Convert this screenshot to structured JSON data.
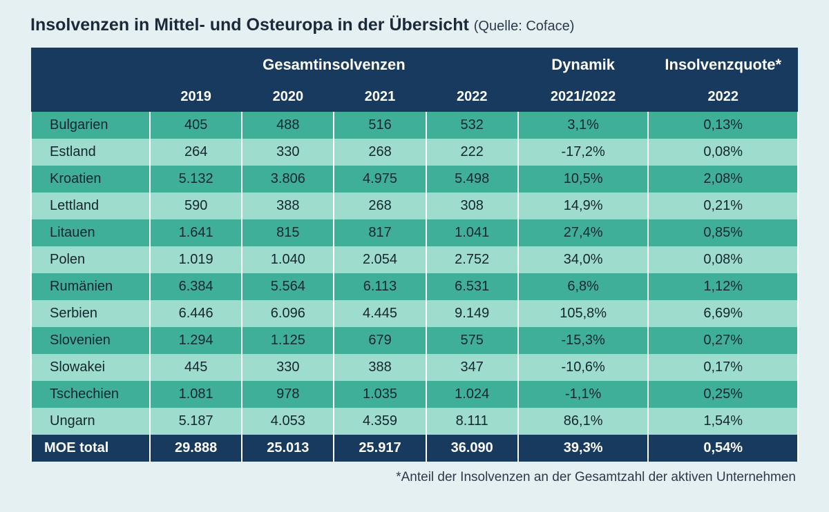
{
  "title_main": "Insolvenzen in Mittel- und Osteuropa in der Übersicht",
  "title_source": "(Quelle: Coface)",
  "header": {
    "group_totals": "Gesamtinsolvenzen",
    "group_dynamics": "Dynamik",
    "group_quote": "Insolvenzquote*",
    "y2019": "2019",
    "y2020": "2020",
    "y2021": "2021",
    "y2022": "2022",
    "dyn_period": "2021/2022",
    "quote_year": "2022"
  },
  "rows": [
    {
      "country": "Bulgarien",
      "v2019": "405",
      "v2020": "488",
      "v2021": "516",
      "v2022": "532",
      "dyn": "3,1%",
      "quote": "0,13%"
    },
    {
      "country": "Estland",
      "v2019": "264",
      "v2020": "330",
      "v2021": "268",
      "v2022": "222",
      "dyn": "-17,2%",
      "quote": "0,08%"
    },
    {
      "country": "Kroatien",
      "v2019": "5.132",
      "v2020": "3.806",
      "v2021": "4.975",
      "v2022": "5.498",
      "dyn": "10,5%",
      "quote": "2,08%"
    },
    {
      "country": "Lettland",
      "v2019": "590",
      "v2020": "388",
      "v2021": "268",
      "v2022": "308",
      "dyn": "14,9%",
      "quote": "0,21%"
    },
    {
      "country": "Litauen",
      "v2019": "1.641",
      "v2020": "815",
      "v2021": "817",
      "v2022": "1.041",
      "dyn": "27,4%",
      "quote": "0,85%"
    },
    {
      "country": "Polen",
      "v2019": "1.019",
      "v2020": "1.040",
      "v2021": "2.054",
      "v2022": "2.752",
      "dyn": "34,0%",
      "quote": "0,08%"
    },
    {
      "country": "Rumänien",
      "v2019": "6.384",
      "v2020": "5.564",
      "v2021": "6.113",
      "v2022": "6.531",
      "dyn": "6,8%",
      "quote": "1,12%"
    },
    {
      "country": "Serbien",
      "v2019": "6.446",
      "v2020": "6.096",
      "v2021": "4.445",
      "v2022": "9.149",
      "dyn": "105,8%",
      "quote": "6,69%"
    },
    {
      "country": "Slovenien",
      "v2019": "1.294",
      "v2020": "1.125",
      "v2021": "679",
      "v2022": "575",
      "dyn": "-15,3%",
      "quote": "0,27%"
    },
    {
      "country": "Slowakei",
      "v2019": "445",
      "v2020": "330",
      "v2021": "388",
      "v2022": "347",
      "dyn": "-10,6%",
      "quote": "0,17%"
    },
    {
      "country": "Tschechien",
      "v2019": "1.081",
      "v2020": "978",
      "v2021": "1.035",
      "v2022": "1.024",
      "dyn": "-1,1%",
      "quote": "0,25%"
    },
    {
      "country": "Ungarn",
      "v2019": "5.187",
      "v2020": "4.053",
      "v2021": "4.359",
      "v2022": "8.111",
      "dyn": "86,1%",
      "quote": "1,54%"
    }
  ],
  "total": {
    "country": "MOE total",
    "v2019": "29.888",
    "v2020": "25.013",
    "v2021": "25.917",
    "v2022": "36.090",
    "dyn": "39,3%",
    "quote": "0,54%"
  },
  "footnote": "*Anteil der Insolvenzen an der Gesamtzahl der aktiven Unternehmen",
  "style": {
    "type": "table",
    "page_bg": "#e5f0f2",
    "header_bg": "#173a5e",
    "header_fg": "#ffffff",
    "row_dark_bg": "#3fb097",
    "row_light_bg": "#9edccd",
    "row_fg": "#12262e",
    "total_bg": "#173a5e",
    "total_fg": "#ffffff",
    "cell_border": "#ffffff",
    "title_fontsize_pt": 19,
    "source_fontsize_pt": 15,
    "header_fontsize_pt": 15,
    "cell_fontsize_pt": 15,
    "footnote_fontsize_pt": 14,
    "column_widths_pct": [
      15.5,
      12,
      12,
      12,
      12,
      17,
      19.5
    ],
    "column_align": [
      "left",
      "center",
      "center",
      "center",
      "center",
      "center",
      "center"
    ]
  }
}
